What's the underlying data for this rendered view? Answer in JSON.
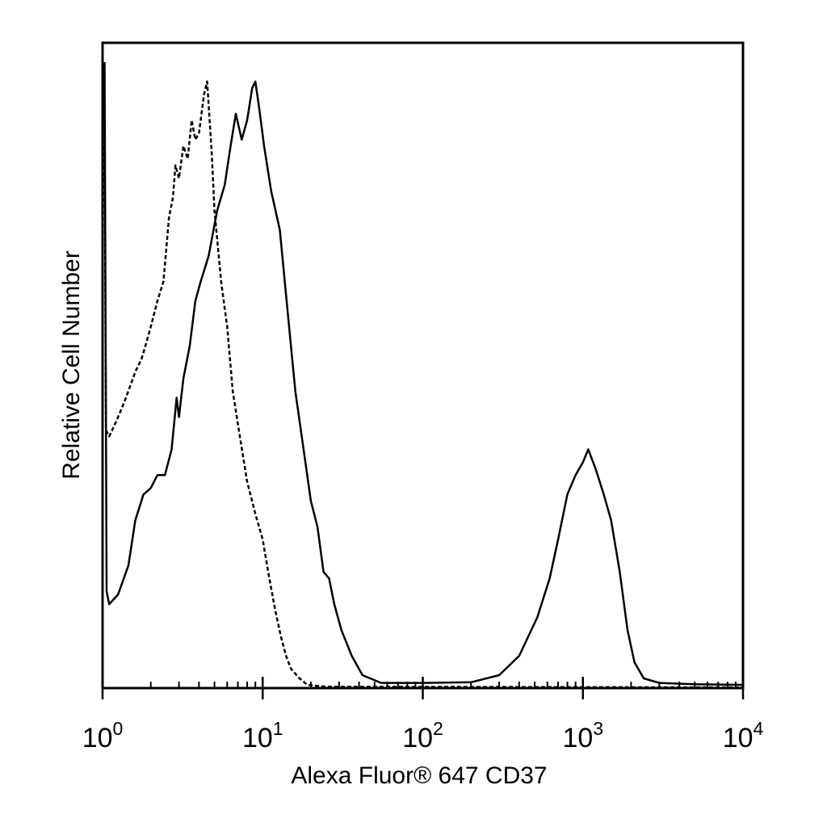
{
  "chart_data": {
    "type": "line",
    "title": "",
    "xlabel": "Alexa Fluor® 647 CD37",
    "ylabel": "Relative Cell Number",
    "x_scale": "log",
    "xlim": [
      1,
      10000
    ],
    "ylim": [
      0,
      100
    ],
    "x_ticks": [
      {
        "base": "10",
        "exp": "0",
        "value": 1
      },
      {
        "base": "10",
        "exp": "1",
        "value": 10
      },
      {
        "base": "10",
        "exp": "2",
        "value": 100
      },
      {
        "base": "10",
        "exp": "3",
        "value": 1000
      },
      {
        "base": "10",
        "exp": "4",
        "value": 10000
      }
    ],
    "grid": false,
    "legend": "none",
    "series": [
      {
        "style": "dashed",
        "color": "#000000",
        "points": [
          [
            1.03,
            86
          ],
          [
            1.05,
            40
          ],
          [
            1.1,
            39
          ],
          [
            1.2,
            41
          ],
          [
            1.3,
            43
          ],
          [
            1.4,
            45
          ],
          [
            1.6,
            49
          ],
          [
            1.75,
            51
          ],
          [
            1.85,
            53
          ],
          [
            2.0,
            56
          ],
          [
            2.2,
            60
          ],
          [
            2.4,
            63
          ],
          [
            2.6,
            73
          ],
          [
            2.75,
            76
          ],
          [
            2.85,
            81
          ],
          [
            3.0,
            79
          ],
          [
            3.2,
            84
          ],
          [
            3.4,
            82
          ],
          [
            3.6,
            88
          ],
          [
            3.8,
            85
          ],
          [
            4.0,
            86
          ],
          [
            4.3,
            92
          ],
          [
            4.5,
            94
          ],
          [
            4.8,
            83
          ],
          [
            5.0,
            74
          ],
          [
            5.5,
            63
          ],
          [
            6.0,
            56
          ],
          [
            6.5,
            46
          ],
          [
            7.2,
            39
          ],
          [
            8.0,
            32
          ],
          [
            9.0,
            27
          ],
          [
            10,
            23
          ],
          [
            11,
            17
          ],
          [
            12,
            12
          ],
          [
            13,
            8
          ],
          [
            14,
            5
          ],
          [
            15,
            3
          ],
          [
            17,
            1.5
          ],
          [
            19,
            0.5
          ],
          [
            25,
            0.2
          ],
          [
            60,
            0.2
          ],
          [
            10000,
            0.1
          ]
        ]
      },
      {
        "style": "solid",
        "color": "#000000",
        "points": [
          [
            1.03,
            97
          ],
          [
            1.06,
            15
          ],
          [
            1.1,
            13
          ],
          [
            1.25,
            14.5
          ],
          [
            1.45,
            19
          ],
          [
            1.6,
            26
          ],
          [
            1.8,
            30
          ],
          [
            2.0,
            31
          ],
          [
            2.2,
            33
          ],
          [
            2.45,
            33
          ],
          [
            2.7,
            37
          ],
          [
            2.9,
            45
          ],
          [
            3.0,
            42
          ],
          [
            3.2,
            48
          ],
          [
            3.5,
            53
          ],
          [
            3.8,
            60
          ],
          [
            4.1,
            63
          ],
          [
            4.6,
            67
          ],
          [
            5.2,
            74
          ],
          [
            5.8,
            78
          ],
          [
            6.3,
            84
          ],
          [
            6.8,
            89
          ],
          [
            7.4,
            85
          ],
          [
            8.0,
            88
          ],
          [
            8.6,
            93
          ],
          [
            9.0,
            94
          ],
          [
            9.5,
            90
          ],
          [
            10.2,
            84
          ],
          [
            11.3,
            77
          ],
          [
            12.8,
            71
          ],
          [
            14.5,
            57
          ],
          [
            16,
            46
          ],
          [
            18,
            37
          ],
          [
            20,
            29
          ],
          [
            22,
            25
          ],
          [
            24,
            18
          ],
          [
            26,
            17
          ],
          [
            28,
            13
          ],
          [
            31,
            9
          ],
          [
            36,
            5
          ],
          [
            42,
            2
          ],
          [
            55,
            0.8
          ],
          [
            100,
            0.8
          ],
          [
            200,
            0.9
          ],
          [
            300,
            2
          ],
          [
            400,
            5
          ],
          [
            520,
            11
          ],
          [
            620,
            17
          ],
          [
            700,
            23
          ],
          [
            800,
            30
          ],
          [
            900,
            33
          ],
          [
            1000,
            35
          ],
          [
            1080,
            37
          ],
          [
            1200,
            34
          ],
          [
            1350,
            30
          ],
          [
            1500,
            26
          ],
          [
            1700,
            18
          ],
          [
            1900,
            9
          ],
          [
            2100,
            4
          ],
          [
            2400,
            1.5
          ],
          [
            3000,
            0.8
          ],
          [
            5000,
            0.6
          ],
          [
            10000,
            0.5
          ]
        ]
      }
    ]
  }
}
